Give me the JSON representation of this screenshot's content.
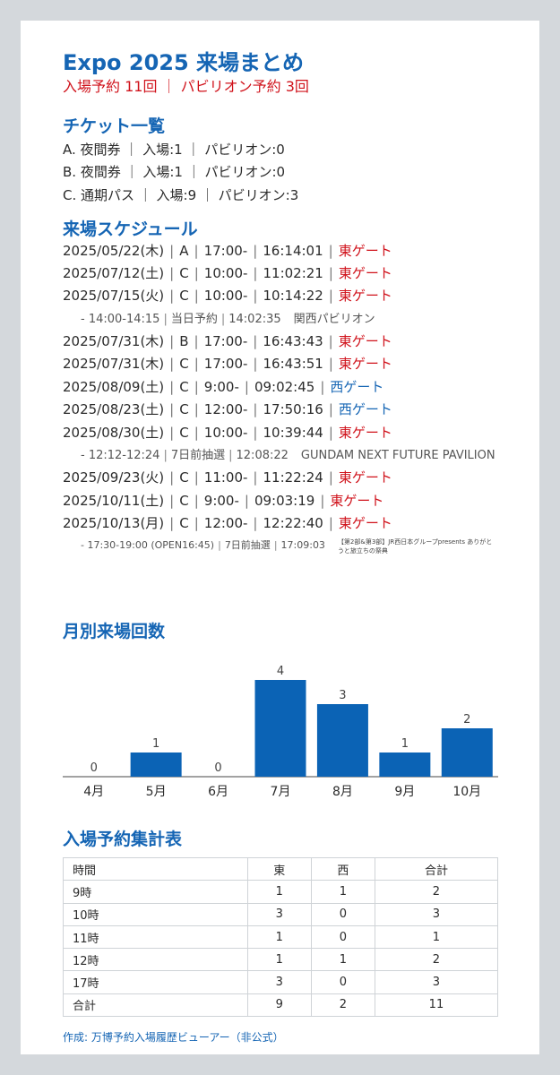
{
  "header": {
    "title": "Expo 2025 来場まとめ",
    "subtitle": "入場予約 11回 ｜ パビリオン予約 3回"
  },
  "tickets": {
    "heading": "チケット一覧",
    "rows": [
      "A. 夜間券 ｜ 入場:1 ｜ パビリオン:0",
      "B. 夜間券 ｜ 入場:1 ｜ パビリオン:0",
      "C. 通期パス ｜ 入場:9 ｜ パビリオン:3"
    ]
  },
  "schedule": {
    "heading": "来場スケジュール",
    "visits": [
      {
        "date": "2025/05/22(木)",
        "ticket": "A",
        "slot": "17:00-",
        "entry": "16:14:01",
        "gate": "東ゲート",
        "gate_type": "east"
      },
      {
        "date": "2025/07/12(土)",
        "ticket": "C",
        "slot": "10:00-",
        "entry": "11:02:21",
        "gate": "東ゲート",
        "gate_type": "east"
      },
      {
        "date": "2025/07/15(火)",
        "ticket": "C",
        "slot": "10:00-",
        "entry": "10:14:22",
        "gate": "東ゲート",
        "gate_type": "east",
        "pavilion": {
          "time": "- 14:00-14:15",
          "kind": "当日予約",
          "entry": "14:02:35",
          "name": "関西パビリオン"
        }
      },
      {
        "date": "2025/07/31(木)",
        "ticket": "B",
        "slot": "17:00-",
        "entry": "16:43:43",
        "gate": "東ゲート",
        "gate_type": "east"
      },
      {
        "date": "2025/07/31(木)",
        "ticket": "C",
        "slot": "17:00-",
        "entry": "16:43:51",
        "gate": "東ゲート",
        "gate_type": "east"
      },
      {
        "date": "2025/08/09(土)",
        "ticket": "C",
        "slot": "9:00-",
        "entry": "09:02:45",
        "gate": "西ゲート",
        "gate_type": "west"
      },
      {
        "date": "2025/08/23(土)",
        "ticket": "C",
        "slot": "12:00-",
        "entry": "17:50:16",
        "gate": "西ゲート",
        "gate_type": "west"
      },
      {
        "date": "2025/08/30(土)",
        "ticket": "C",
        "slot": "10:00-",
        "entry": "10:39:44",
        "gate": "東ゲート",
        "gate_type": "east",
        "pavilion": {
          "time": "- 12:12-12:24",
          "kind": "7日前抽選",
          "entry": "12:08:22",
          "name": "GUNDAM NEXT FUTURE PAVILION"
        }
      },
      {
        "date": "2025/09/23(火)",
        "ticket": "C",
        "slot": "11:00-",
        "entry": "11:22:24",
        "gate": "東ゲート",
        "gate_type": "east"
      },
      {
        "date": "2025/10/11(土)",
        "ticket": "C",
        "slot": "9:00-",
        "entry": "09:03:19",
        "gate": "東ゲート",
        "gate_type": "east"
      },
      {
        "date": "2025/10/13(月)",
        "ticket": "C",
        "slot": "12:00-",
        "entry": "12:22:40",
        "gate": "東ゲート",
        "gate_type": "east",
        "pavilion": {
          "time": "- 17:30-19:00 (OPEN16:45)",
          "kind": "7日前抽選",
          "entry": "17:09:03",
          "name": "【第2部&第3部】JR西日本グループpresents ありがとうと旅立ちの祭典",
          "small": true
        }
      }
    ]
  },
  "chart_data": {
    "type": "bar",
    "title": "月別来場回数",
    "categories": [
      "4月",
      "5月",
      "6月",
      "7月",
      "8月",
      "9月",
      "10月"
    ],
    "values": [
      0,
      1,
      0,
      4,
      3,
      1,
      2
    ],
    "ylim": [
      0,
      4
    ],
    "grid": false,
    "bar_color": "#0b63b5"
  },
  "summary_table": {
    "heading": "入場予約集計表",
    "columns": [
      "時間",
      "東",
      "西",
      "合計"
    ],
    "rows": [
      [
        "9時",
        "1",
        "1",
        "2"
      ],
      [
        "10時",
        "3",
        "0",
        "3"
      ],
      [
        "11時",
        "1",
        "0",
        "1"
      ],
      [
        "12時",
        "1",
        "1",
        "2"
      ],
      [
        "17時",
        "3",
        "0",
        "3"
      ],
      [
        "合計",
        "9",
        "2",
        "11"
      ]
    ]
  },
  "footer": {
    "credit": "作成: 万博予約入場履歴ビューアー（非公式）"
  },
  "colors": {
    "accent_blue": "#1565b4",
    "east_red": "#d0121b",
    "background": "#d4d8dc"
  }
}
